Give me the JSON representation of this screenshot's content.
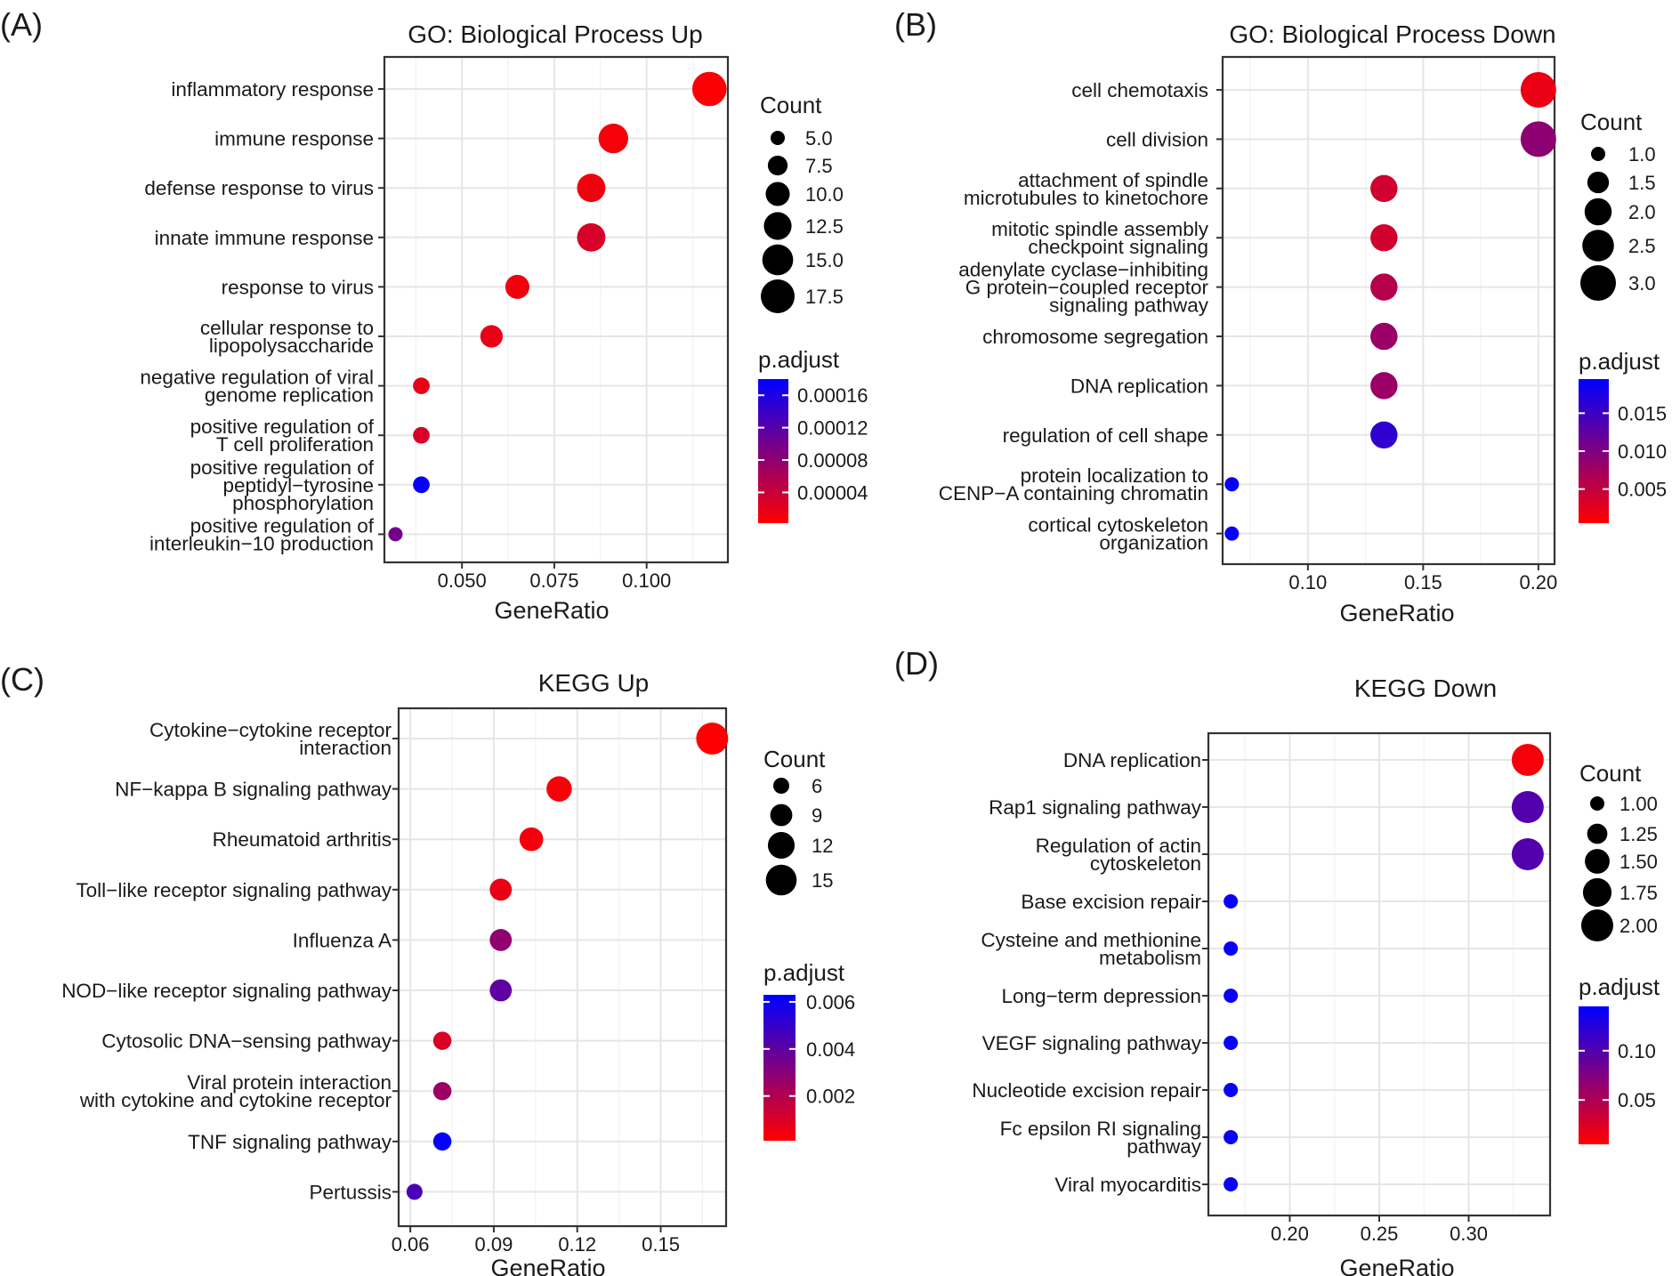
{
  "chart_data": [
    {
      "panel_label": "(A)",
      "type": "scatter",
      "title": "GO: Biological Process Up",
      "xlabel": "GeneRatio",
      "xlim": [
        0.029,
        0.122
      ],
      "xticks": [
        0.05,
        0.075,
        0.1
      ],
      "xtick_labels": [
        "0.050",
        "0.075",
        "0.100"
      ],
      "categories": [
        [
          "inflammatory response"
        ],
        [
          "immune response"
        ],
        [
          "defense response to virus"
        ],
        [
          "innate immune response"
        ],
        [
          "response to virus"
        ],
        [
          "cellular response to",
          "lipopolysaccharide"
        ],
        [
          "negative regulation of viral",
          "genome replication"
        ],
        [
          "positive regulation of",
          "T cell proliferation"
        ],
        [
          "positive regulation of",
          "peptidyl−tyrosine",
          "phosphorylation"
        ],
        [
          "positive regulation of",
          "interleukin−10 production"
        ]
      ],
      "points": [
        {
          "gene_ratio": 0.117,
          "count": 18,
          "p_adjust": 5e-06
        },
        {
          "gene_ratio": 0.091,
          "count": 14,
          "p_adjust": 8e-06
        },
        {
          "gene_ratio": 0.085,
          "count": 13,
          "p_adjust": 1.2e-05
        },
        {
          "gene_ratio": 0.085,
          "count": 13,
          "p_adjust": 3e-05
        },
        {
          "gene_ratio": 0.065,
          "count": 10,
          "p_adjust": 1.2e-05
        },
        {
          "gene_ratio": 0.058,
          "count": 9,
          "p_adjust": 1.8e-05
        },
        {
          "gene_ratio": 0.039,
          "count": 6,
          "p_adjust": 1.8e-05
        },
        {
          "gene_ratio": 0.039,
          "count": 6,
          "p_adjust": 3e-05
        },
        {
          "gene_ratio": 0.039,
          "count": 6,
          "p_adjust": 0.000175
        },
        {
          "gene_ratio": 0.032,
          "count": 5,
          "p_adjust": 0.0001
        }
      ],
      "size_legend": {
        "title": "Count",
        "range": [
          5,
          17.5
        ],
        "entries": [
          5,
          7.5,
          10,
          12.5,
          15,
          17.5
        ],
        "labels": [
          "5.0",
          "7.5",
          "10.0",
          "12.5",
          "15.0",
          "17.5"
        ]
      },
      "color_legend": {
        "title": "p.adjust",
        "range": [
          2e-06,
          0.00018
        ],
        "ticks": [
          4e-05,
          8e-05,
          0.00012,
          0.00016
        ],
        "labels": [
          "0.00004",
          "0.00008",
          "0.00012",
          "0.00016"
        ]
      }
    },
    {
      "panel_label": "(B)",
      "type": "scatter",
      "title": "GO: Biological Process Down",
      "xlabel": "GeneRatio",
      "xlim": [
        0.063,
        0.207
      ],
      "xticks": [
        0.1,
        0.15,
        0.2
      ],
      "xtick_labels": [
        "0.10",
        "0.15",
        "0.20"
      ],
      "categories": [
        [
          "cell chemotaxis"
        ],
        [
          "cell division"
        ],
        [
          "attachment of spindle",
          "microtubules to kinetochore"
        ],
        [
          "mitotic spindle assembly",
          "checkpoint signaling"
        ],
        [
          "adenylate cyclase−inhibiting",
          "G protein−coupled receptor",
          "signaling pathway"
        ],
        [
          "chromosome segregation"
        ],
        [
          "DNA replication"
        ],
        [
          "regulation of cell shape"
        ],
        [
          "protein localization to",
          "CENP−A containing chromatin"
        ],
        [
          "cortical cytoskeleton",
          "organization"
        ]
      ],
      "points": [
        {
          "gene_ratio": 0.2,
          "count": 3,
          "p_adjust": 0.002
        },
        {
          "gene_ratio": 0.2,
          "count": 3,
          "p_adjust": 0.009
        },
        {
          "gene_ratio": 0.133,
          "count": 2,
          "p_adjust": 0.004
        },
        {
          "gene_ratio": 0.133,
          "count": 2,
          "p_adjust": 0.004
        },
        {
          "gene_ratio": 0.133,
          "count": 2,
          "p_adjust": 0.006
        },
        {
          "gene_ratio": 0.133,
          "count": 2,
          "p_adjust": 0.008
        },
        {
          "gene_ratio": 0.133,
          "count": 2,
          "p_adjust": 0.008
        },
        {
          "gene_ratio": 0.133,
          "count": 2,
          "p_adjust": 0.016
        },
        {
          "gene_ratio": 0.067,
          "count": 1,
          "p_adjust": 0.019
        },
        {
          "gene_ratio": 0.067,
          "count": 1,
          "p_adjust": 0.019
        }
      ],
      "size_legend": {
        "title": "Count",
        "range": [
          1,
          3
        ],
        "entries": [
          1,
          1.5,
          2,
          2.5,
          3
        ],
        "labels": [
          "1.0",
          "1.5",
          "2.0",
          "2.5",
          "3.0"
        ]
      },
      "color_legend": {
        "title": "p.adjust",
        "range": [
          0.0005,
          0.0195
        ],
        "ticks": [
          0.005,
          0.01,
          0.015
        ],
        "labels": [
          "0.005",
          "0.010",
          "0.015"
        ]
      }
    },
    {
      "panel_label": "(C)",
      "type": "scatter",
      "title": "KEGG Up",
      "xlabel": "GeneRatio",
      "xlim": [
        0.0558,
        0.1735
      ],
      "xticks": [
        0.06,
        0.09,
        0.12,
        0.15
      ],
      "xtick_labels": [
        "0.06",
        "0.09",
        "0.12",
        "0.15"
      ],
      "categories": [
        [
          "Cytokine−cytokine receptor",
          "interaction"
        ],
        [
          "NF−kappa B signaling pathway"
        ],
        [
          "Rheumatoid arthritis"
        ],
        [
          "Toll−like receptor signaling pathway"
        ],
        [
          "Influenza A"
        ],
        [
          "NOD−like receptor signaling pathway"
        ],
        [
          "Cytosolic DNA−sensing pathway"
        ],
        [
          "Viral protein interaction",
          "with cytokine and cytokine receptor"
        ],
        [
          "TNF signaling pathway"
        ],
        [
          "Pertussis"
        ]
      ],
      "points": [
        {
          "gene_ratio": 0.1685,
          "count": 16,
          "p_adjust": 0.0001
        },
        {
          "gene_ratio": 0.1135,
          "count": 11,
          "p_adjust": 0.0003
        },
        {
          "gene_ratio": 0.1035,
          "count": 10,
          "p_adjust": 0.0004
        },
        {
          "gene_ratio": 0.0925,
          "count": 9,
          "p_adjust": 0.0006
        },
        {
          "gene_ratio": 0.0925,
          "count": 9,
          "p_adjust": 0.0028
        },
        {
          "gene_ratio": 0.0925,
          "count": 9,
          "p_adjust": 0.004
        },
        {
          "gene_ratio": 0.0715,
          "count": 7,
          "p_adjust": 0.001
        },
        {
          "gene_ratio": 0.0715,
          "count": 7,
          "p_adjust": 0.0025
        },
        {
          "gene_ratio": 0.0715,
          "count": 7,
          "p_adjust": 0.0062
        },
        {
          "gene_ratio": 0.0615,
          "count": 6,
          "p_adjust": 0.0045
        }
      ],
      "size_legend": {
        "title": "Count",
        "range": [
          6,
          16
        ],
        "entries": [
          6,
          9,
          12,
          15
        ],
        "labels": [
          "6",
          "9",
          "12",
          "15"
        ]
      },
      "color_legend": {
        "title": "p.adjust",
        "range": [
          0.0001,
          0.0063
        ],
        "ticks": [
          0.002,
          0.004,
          0.006
        ],
        "labels": [
          "0.002",
          "0.004",
          "0.006"
        ]
      }
    },
    {
      "panel_label": "(D)",
      "type": "scatter",
      "title": "KEGG Down",
      "xlabel": "GeneRatio",
      "xlim": [
        0.1545,
        0.3455
      ],
      "xticks": [
        0.2,
        0.25,
        0.3
      ],
      "xtick_labels": [
        "0.20",
        "0.25",
        "0.30"
      ],
      "categories": [
        [
          "DNA replication"
        ],
        [
          "Rap1 signaling pathway"
        ],
        [
          "Regulation of actin",
          "cytoskeleton"
        ],
        [
          "Base excision repair"
        ],
        [
          "Cysteine and methionine",
          "metabolism"
        ],
        [
          "Long−term depression"
        ],
        [
          "VEGF signaling pathway"
        ],
        [
          "Nucleotide excision repair"
        ],
        [
          "Fc epsilon RI signaling",
          "pathway"
        ],
        [
          "Viral myocarditis"
        ]
      ],
      "points": [
        {
          "gene_ratio": 0.333,
          "count": 2,
          "p_adjust": 0.01
        },
        {
          "gene_ratio": 0.333,
          "count": 2,
          "p_adjust": 0.1
        },
        {
          "gene_ratio": 0.333,
          "count": 2,
          "p_adjust": 0.1
        },
        {
          "gene_ratio": 0.167,
          "count": 1,
          "p_adjust": 0.14
        },
        {
          "gene_ratio": 0.167,
          "count": 1,
          "p_adjust": 0.14
        },
        {
          "gene_ratio": 0.167,
          "count": 1,
          "p_adjust": 0.14
        },
        {
          "gene_ratio": 0.167,
          "count": 1,
          "p_adjust": 0.14
        },
        {
          "gene_ratio": 0.167,
          "count": 1,
          "p_adjust": 0.14
        },
        {
          "gene_ratio": 0.167,
          "count": 1,
          "p_adjust": 0.14
        },
        {
          "gene_ratio": 0.167,
          "count": 1,
          "p_adjust": 0.14
        }
      ],
      "size_legend": {
        "title": "Count",
        "range": [
          1,
          2
        ],
        "entries": [
          1,
          1.25,
          1.5,
          1.75,
          2
        ],
        "labels": [
          "1.00",
          "1.25",
          "1.50",
          "1.75",
          "2.00"
        ]
      },
      "color_legend": {
        "title": "p.adjust",
        "range": [
          0.005,
          0.145
        ],
        "ticks": [
          0.05,
          0.1
        ],
        "labels": [
          "0.05",
          "0.10"
        ]
      }
    }
  ]
}
